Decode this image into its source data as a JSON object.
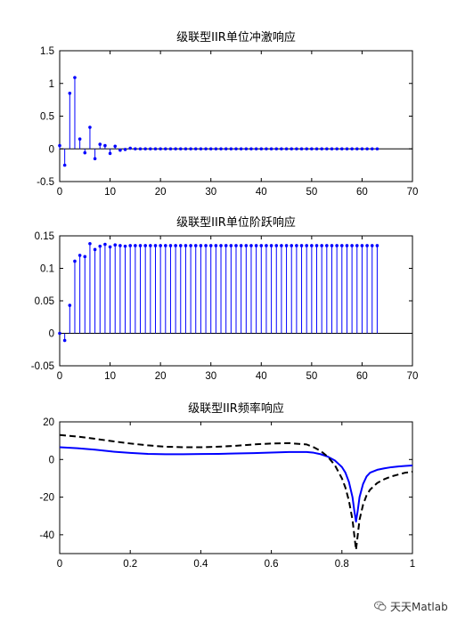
{
  "chart_data": [
    {
      "type": "stem",
      "title": "级联型IIR单位冲激响应",
      "xlim": [
        0,
        70
      ],
      "ylim": [
        -0.5,
        1.5
      ],
      "xticks": [
        0,
        10,
        20,
        30,
        40,
        50,
        60,
        70
      ],
      "yticks": [
        -0.5,
        0,
        0.5,
        1,
        1.5
      ],
      "xtick_labels": [
        "0",
        "10",
        "20",
        "30",
        "40",
        "50",
        "60",
        "70"
      ],
      "ytick_labels": [
        "-0.5",
        "0",
        "0.5",
        "1",
        "1.5"
      ],
      "color": "#0000ff",
      "x": [
        0,
        1,
        2,
        3,
        4,
        5,
        6,
        7,
        8,
        9,
        10,
        11,
        12,
        13,
        14,
        15,
        16,
        17,
        18,
        19,
        20,
        21,
        22,
        23,
        24,
        25,
        26,
        27,
        28,
        29,
        30,
        31,
        32,
        33,
        34,
        35,
        36,
        37,
        38,
        39,
        40,
        41,
        42,
        43,
        44,
        45,
        46,
        47,
        48,
        49,
        50,
        51,
        52,
        53,
        54,
        55,
        56,
        57,
        58,
        59,
        60,
        61,
        62,
        63
      ],
      "y": [
        0.05,
        -0.25,
        0.85,
        1.09,
        0.15,
        -0.06,
        0.33,
        -0.15,
        0.07,
        0.05,
        -0.07,
        0.04,
        -0.02,
        -0.01,
        0.01,
        0,
        0,
        0,
        0,
        0,
        0,
        0,
        0,
        0,
        0,
        0,
        0,
        0,
        0,
        0,
        0,
        0,
        0,
        0,
        0,
        0,
        0,
        0,
        0,
        0,
        0,
        0,
        0,
        0,
        0,
        0,
        0,
        0,
        0,
        0,
        0,
        0,
        0,
        0,
        0,
        0,
        0,
        0,
        0,
        0,
        0,
        0,
        0,
        0
      ]
    },
    {
      "type": "stem",
      "title": "级联型IIR单位阶跃响应",
      "xlim": [
        0,
        70
      ],
      "ylim": [
        -0.05,
        0.15
      ],
      "xticks": [
        0,
        10,
        20,
        30,
        40,
        50,
        60,
        70
      ],
      "yticks": [
        -0.05,
        0,
        0.05,
        0.1,
        0.15
      ],
      "xtick_labels": [
        "0",
        "10",
        "20",
        "30",
        "40",
        "50",
        "60",
        "70"
      ],
      "ytick_labels": [
        "-0.05",
        "0",
        "0.05",
        "0.1",
        "0.15"
      ],
      "color": "#0000ff",
      "x": [
        0,
        1,
        2,
        3,
        4,
        5,
        6,
        7,
        8,
        9,
        10,
        11,
        12,
        13,
        14,
        15,
        16,
        17,
        18,
        19,
        20,
        21,
        22,
        23,
        24,
        25,
        26,
        27,
        28,
        29,
        30,
        31,
        32,
        33,
        34,
        35,
        36,
        37,
        38,
        39,
        40,
        41,
        42,
        43,
        44,
        45,
        46,
        47,
        48,
        49,
        50,
        51,
        52,
        53,
        54,
        55,
        56,
        57,
        58,
        59,
        60,
        61,
        62,
        63
      ],
      "y": [
        0,
        -0.011,
        0.043,
        0.111,
        0.12,
        0.118,
        0.138,
        0.129,
        0.134,
        0.137,
        0.133,
        0.136,
        0.135,
        0.134,
        0.135,
        0.135,
        0.135,
        0.135,
        0.135,
        0.135,
        0.135,
        0.135,
        0.135,
        0.135,
        0.135,
        0.135,
        0.135,
        0.135,
        0.135,
        0.135,
        0.135,
        0.135,
        0.135,
        0.135,
        0.135,
        0.135,
        0.135,
        0.135,
        0.135,
        0.135,
        0.135,
        0.135,
        0.135,
        0.135,
        0.135,
        0.135,
        0.135,
        0.135,
        0.135,
        0.135,
        0.135,
        0.135,
        0.135,
        0.135,
        0.135,
        0.135,
        0.135,
        0.135,
        0.135,
        0.135,
        0.135,
        0.135,
        0.135,
        0.135
      ]
    },
    {
      "type": "line",
      "title": "级联型IIR频率响应",
      "xlim": [
        0,
        1
      ],
      "ylim": [
        -50,
        20
      ],
      "xticks": [
        0,
        0.2,
        0.4,
        0.6,
        0.8,
        1
      ],
      "yticks": [
        -40,
        -20,
        0,
        20
      ],
      "xtick_labels": [
        "0",
        "0.2",
        "0.4",
        "0.6",
        "0.8",
        "1"
      ],
      "ytick_labels": [
        "-40",
        "-20",
        "0",
        "20"
      ],
      "series": [
        {
          "color": "#0000ff",
          "style": "solid",
          "x": [
            0,
            0.05,
            0.1,
            0.15,
            0.2,
            0.25,
            0.3,
            0.35,
            0.4,
            0.45,
            0.5,
            0.55,
            0.6,
            0.65,
            0.7,
            0.72,
            0.74,
            0.76,
            0.78,
            0.8,
            0.81,
            0.82,
            0.83,
            0.835,
            0.84,
            0.845,
            0.85,
            0.86,
            0.87,
            0.88,
            0.9,
            0.92,
            0.94,
            0.96,
            0.98,
            1
          ],
          "y": [
            6.5,
            6,
            5.2,
            4.2,
            3.5,
            3,
            2.8,
            2.8,
            2.9,
            3,
            3.2,
            3.4,
            3.7,
            4,
            4,
            3.6,
            2.8,
            1.5,
            -0.5,
            -4,
            -7,
            -12,
            -20,
            -27,
            -33,
            -27,
            -20,
            -13,
            -9,
            -7,
            -5.5,
            -4.7,
            -4.1,
            -3.7,
            -3.4,
            -3.2
          ]
        },
        {
          "color": "#000000",
          "style": "dashed",
          "x": [
            0,
            0.05,
            0.1,
            0.15,
            0.2,
            0.25,
            0.3,
            0.35,
            0.4,
            0.45,
            0.5,
            0.55,
            0.6,
            0.65,
            0.7,
            0.72,
            0.74,
            0.76,
            0.78,
            0.8,
            0.81,
            0.82,
            0.83,
            0.835,
            0.84,
            0.845,
            0.85,
            0.86,
            0.87,
            0.88,
            0.9,
            0.92,
            0.94,
            0.96,
            0.98,
            1
          ],
          "y": [
            13,
            12.2,
            11,
            9.7,
            8.5,
            7.5,
            6.8,
            6.5,
            6.5,
            6.8,
            7.3,
            8,
            8.5,
            8.7,
            8,
            6.5,
            4.5,
            1.5,
            -3,
            -10,
            -15,
            -22,
            -32,
            -40,
            -48,
            -40,
            -32,
            -24,
            -19,
            -16,
            -12.5,
            -10.5,
            -9,
            -8,
            -7,
            -6.5
          ]
        }
      ]
    }
  ],
  "watermark": {
    "text": "天天Matlab",
    "icon": "wechat-icon"
  }
}
